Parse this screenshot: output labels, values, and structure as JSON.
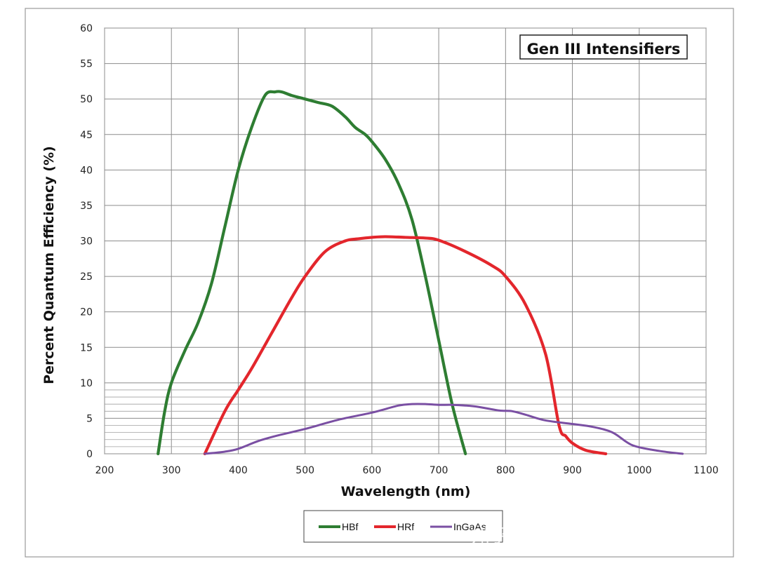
{
  "chart_data": {
    "type": "line",
    "title": "Gen III Intensifiers",
    "xlabel": "Wavelength (nm)",
    "ylabel": "Percent Quantum Efficiency (%)",
    "xlim": [
      200,
      1100
    ],
    "ylim": [
      0,
      60
    ],
    "xticks": [
      200,
      300,
      400,
      500,
      600,
      700,
      800,
      900,
      1000,
      1100
    ],
    "yticks": [
      0,
      5,
      10,
      15,
      20,
      25,
      30,
      35,
      40,
      45,
      50,
      55,
      60
    ],
    "minor_y_gridlines": [
      1,
      2,
      3,
      4,
      6,
      7,
      8,
      9
    ],
    "grid": true,
    "legend_position": "bottom",
    "series": [
      {
        "name": "HBf",
        "color": "#2e7d32",
        "x": [
          280,
          290,
          300,
          320,
          340,
          360,
          380,
          400,
          420,
          440,
          455,
          465,
          480,
          500,
          520,
          540,
          560,
          575,
          590,
          600,
          620,
          640,
          660,
          680,
          700,
          720,
          740
        ],
        "y": [
          0,
          6,
          10,
          14.5,
          18.5,
          24,
          32,
          40,
          46,
          50.5,
          51,
          51,
          50.5,
          50,
          49.5,
          49,
          47.5,
          46,
          45,
          44,
          41.5,
          38,
          33,
          25,
          16,
          7,
          0
        ]
      },
      {
        "name": "HRf",
        "color": "#e3262c",
        "x": [
          350,
          380,
          400,
          420,
          450,
          480,
          500,
          530,
          560,
          580,
          600,
          620,
          650,
          680,
          700,
          740,
          780,
          800,
          830,
          860,
          880,
          890,
          900,
          920,
          950
        ],
        "y": [
          0,
          6,
          9,
          12,
          17,
          22,
          25,
          28.5,
          30,
          30.3,
          30.5,
          30.6,
          30.5,
          30.4,
          30.1,
          28.5,
          26.5,
          25,
          21,
          14,
          4,
          2.5,
          1.5,
          0.5,
          0
        ]
      },
      {
        "name": "InGaAs",
        "color": "#7a4fa3",
        "x": [
          350,
          380,
          400,
          430,
          460,
          500,
          550,
          600,
          640,
          660,
          680,
          700,
          720,
          740,
          760,
          790,
          810,
          830,
          860,
          900,
          930,
          960,
          990,
          1030,
          1065
        ],
        "y": [
          0,
          0.3,
          0.7,
          1.8,
          2.6,
          3.5,
          4.8,
          5.8,
          6.8,
          7.0,
          7.0,
          6.9,
          6.9,
          6.8,
          6.6,
          6.1,
          6.0,
          5.5,
          4.7,
          4.2,
          3.8,
          3.0,
          1.2,
          0.4,
          0
        ]
      }
    ]
  },
  "watermark": "知乎 @东方闪光（北京）..."
}
